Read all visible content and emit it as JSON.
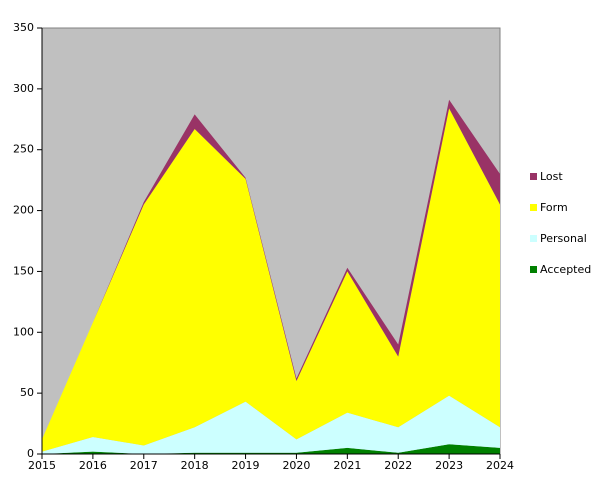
{
  "chart_data": {
    "type": "area",
    "stacked": true,
    "x": [
      2015,
      2016,
      2017,
      2018,
      2019,
      2020,
      2021,
      2022,
      2023,
      2024
    ],
    "xlim": [
      2015,
      2024
    ],
    "xticks": [
      2015,
      2016,
      2017,
      2018,
      2019,
      2020,
      2021,
      2022,
      2023,
      2024
    ],
    "ylim": [
      0,
      350
    ],
    "yticks": [
      0,
      50,
      100,
      150,
      200,
      250,
      300,
      350
    ],
    "series": [
      {
        "name": "Accepted",
        "color": "#008000",
        "values": [
          0,
          2,
          0,
          1,
          1,
          1,
          5,
          1,
          8,
          5
        ]
      },
      {
        "name": "Personal",
        "color": "#ccffff",
        "values": [
          2,
          12,
          7,
          21,
          42,
          11,
          29,
          21,
          40,
          17
        ]
      },
      {
        "name": "Form",
        "color": "#ffff00",
        "values": [
          10,
          94,
          198,
          245,
          183,
          48,
          116,
          58,
          236,
          183
        ]
      },
      {
        "name": "Lost",
        "color": "#993366",
        "values": [
          0,
          0,
          2,
          12,
          1,
          2,
          3,
          10,
          7,
          25
        ]
      }
    ],
    "plot_background": "#c0c0c0",
    "legend": "right"
  }
}
